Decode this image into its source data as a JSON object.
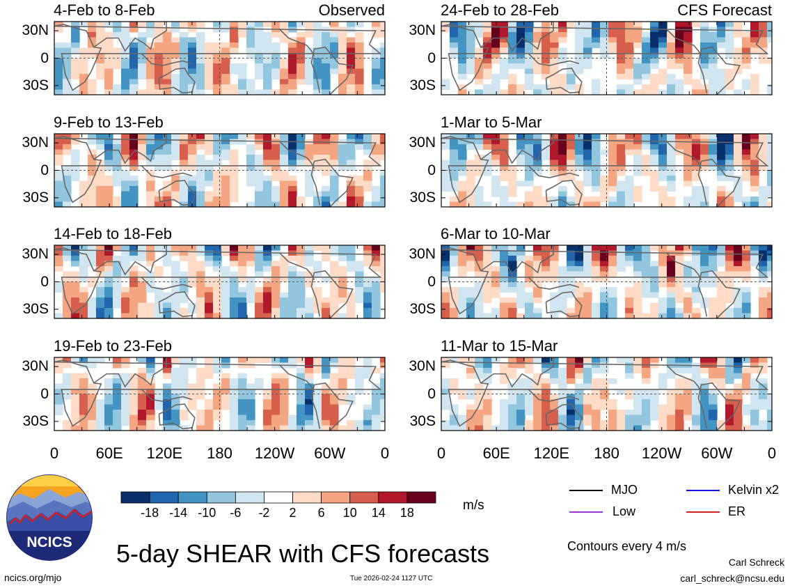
{
  "chart_data": {
    "type": "heatmap",
    "title": "5-day SHEAR with CFS forecasts",
    "units": "m/s",
    "contour_interval_note": "Contours every 4 m/s",
    "x_ticks": [
      "0",
      "60E",
      "120E",
      "180",
      "120W",
      "60W",
      "0"
    ],
    "y_ticks": [
      "30N",
      "0",
      "30S"
    ],
    "colorbar": {
      "ticks": [
        "-18",
        "-14",
        "-10",
        "-6",
        "-2",
        "2",
        "6",
        "10",
        "14",
        "18"
      ],
      "colors": [
        "#08306b",
        "#2166ac",
        "#4393c3",
        "#92c5de",
        "#d1e5f0",
        "#ffffff",
        "#fddbc7",
        "#f4a582",
        "#d6604d",
        "#b2182b",
        "#67001f"
      ]
    },
    "panels": [
      {
        "period": "4-Feb to 8-Feb",
        "tag": "Observed",
        "seed": 11
      },
      {
        "period": "9-Feb to 13-Feb",
        "tag": "",
        "seed": 23
      },
      {
        "period": "14-Feb to 18-Feb",
        "tag": "",
        "seed": 37
      },
      {
        "period": "19-Feb to 23-Feb",
        "tag": "",
        "seed": 41
      },
      {
        "period": "24-Feb to 28-Feb",
        "tag": "CFS Forecast",
        "seed": 53
      },
      {
        "period": "1-Mar to 5-Mar",
        "tag": "",
        "seed": 67
      },
      {
        "period": "6-Mar to 10-Mar",
        "tag": "",
        "seed": 79
      },
      {
        "period": "11-Mar to 15-Mar",
        "tag": "",
        "seed": 83
      }
    ],
    "legend": [
      {
        "label": "MJO",
        "color": "#000000"
      },
      {
        "label": "Kelvin x2",
        "color": "#1010ee"
      },
      {
        "label": "Low",
        "color": "#9932cc"
      },
      {
        "label": "ER",
        "color": "#cc2222"
      }
    ]
  },
  "footer": {
    "logo_text": "NCICS",
    "url": "ncics.org/mjo",
    "timestamp": "Tue 2026-02-24 1127 UTC",
    "author": "Carl Schreck",
    "email": "carl_schreck@ncsu.edu"
  }
}
